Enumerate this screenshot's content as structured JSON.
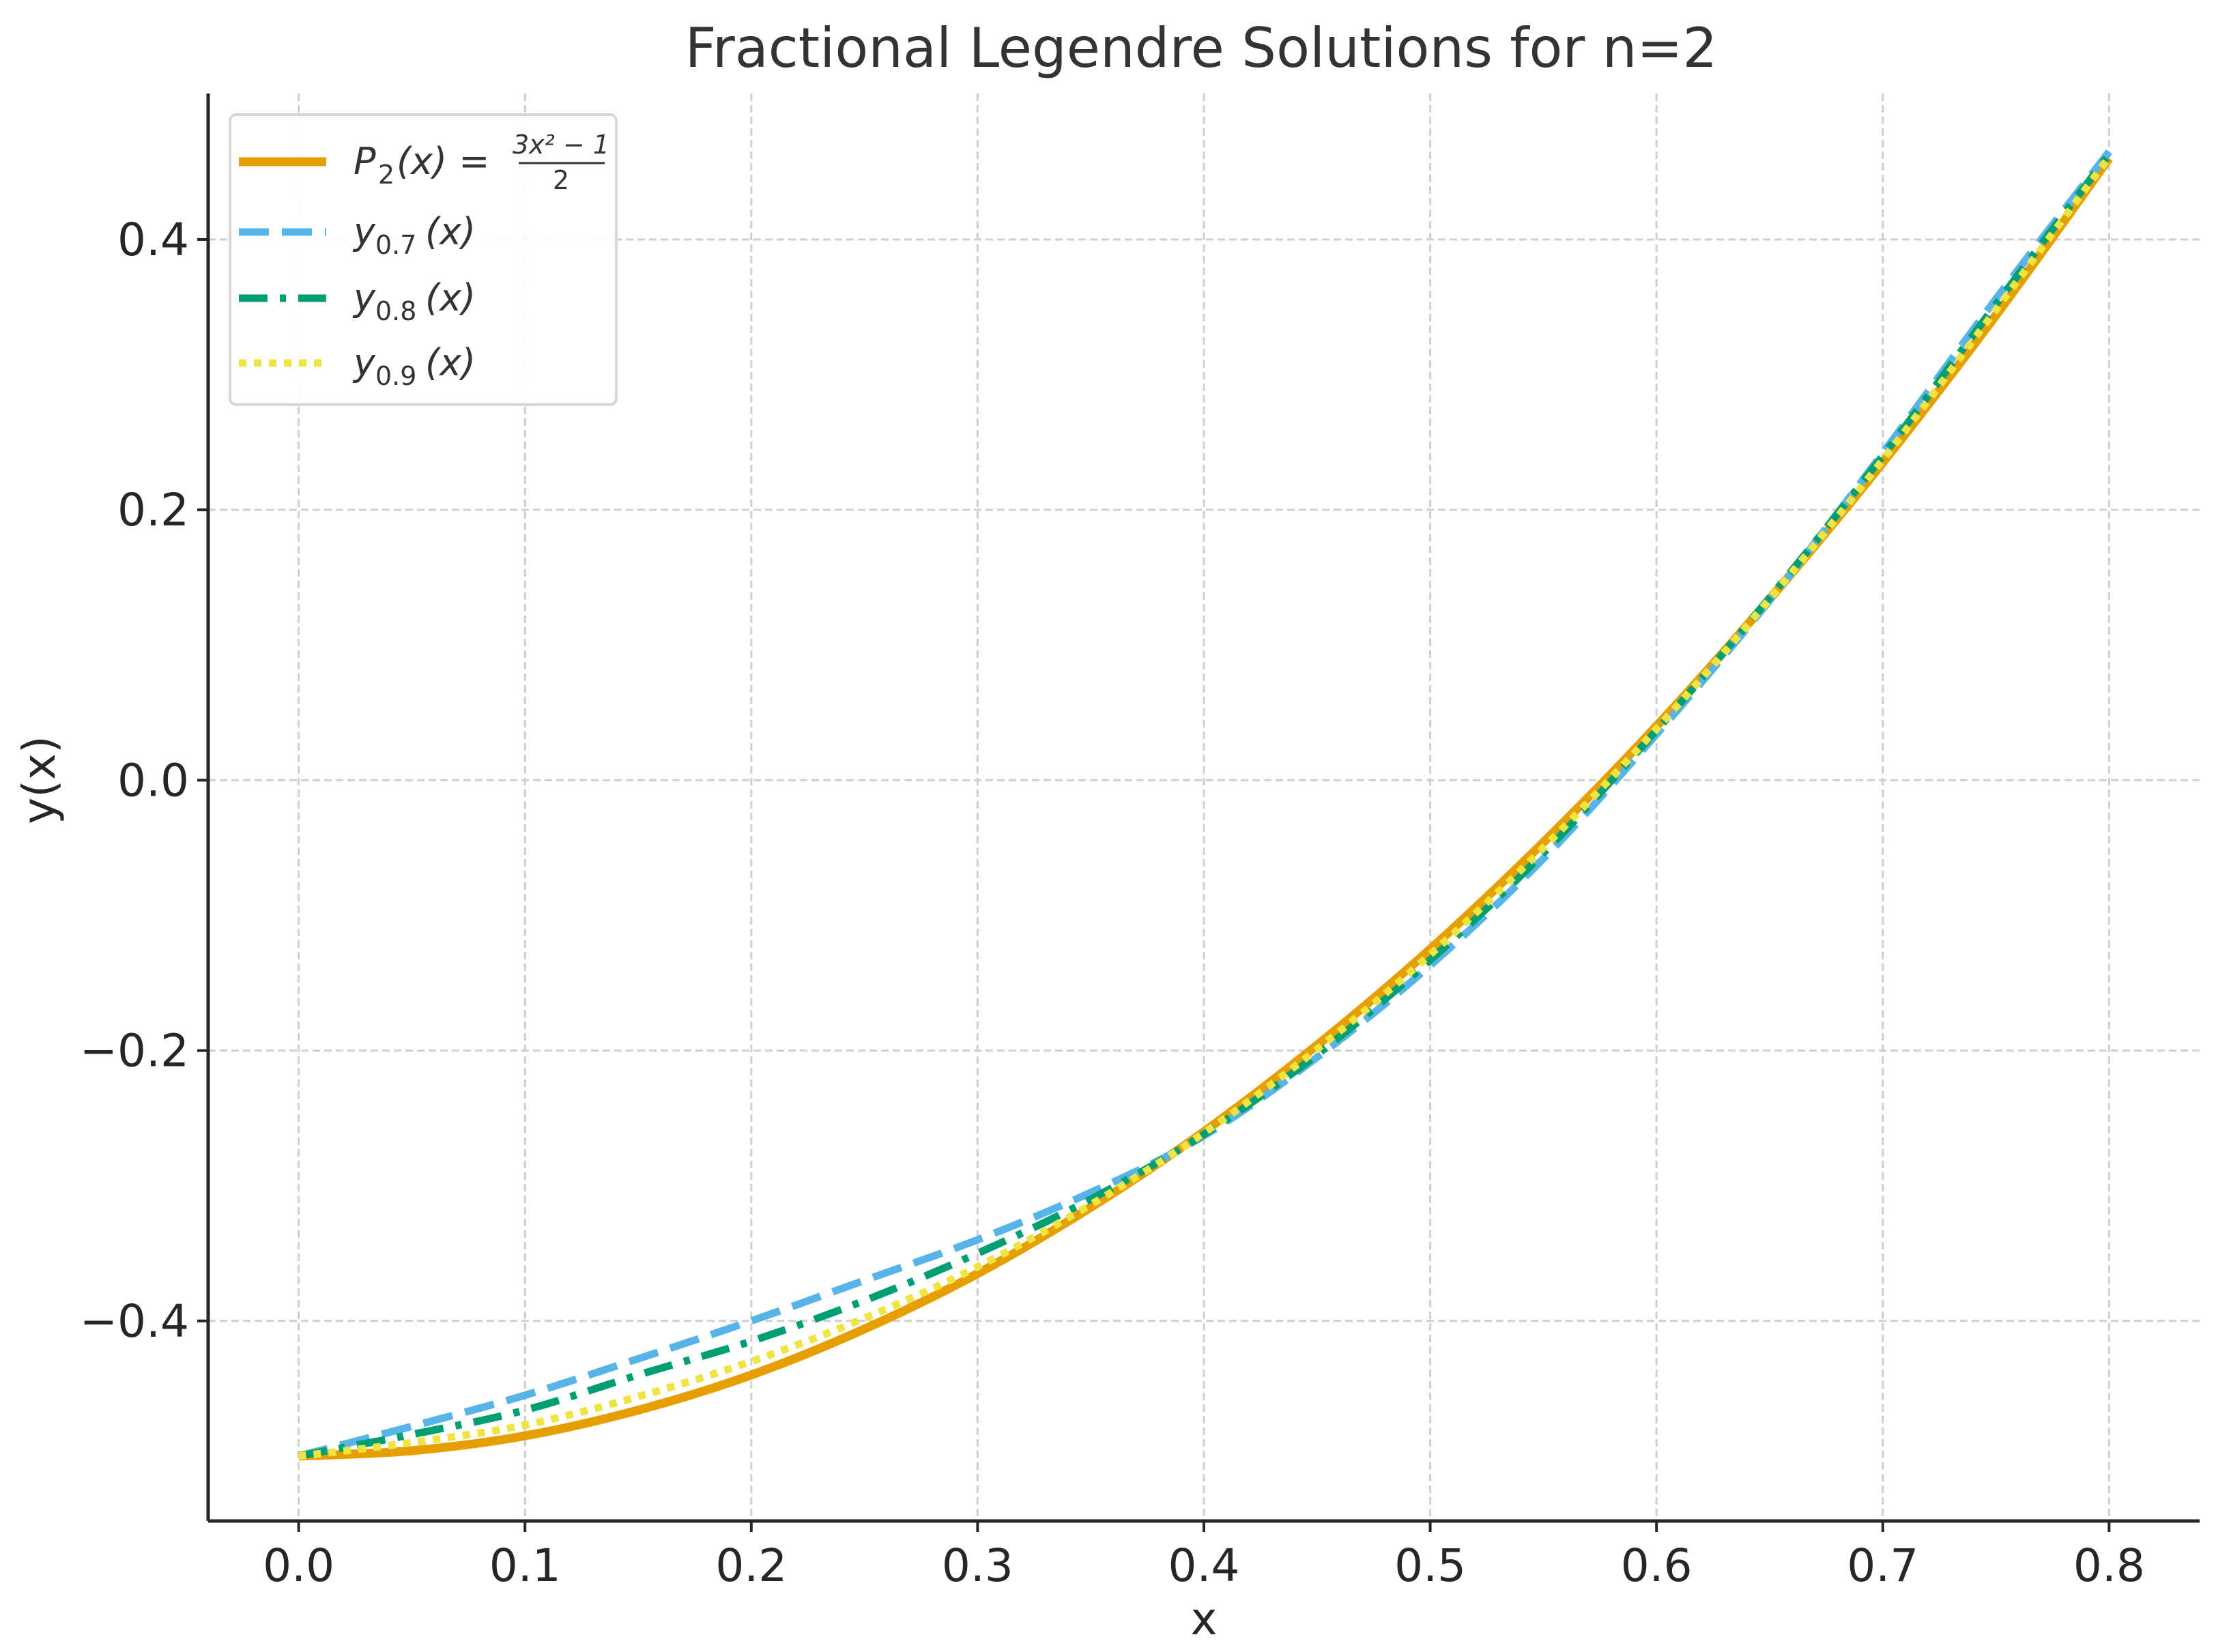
{
  "chart_data": {
    "type": "line",
    "title": "Fractional Legendre Solutions for n=2",
    "xlabel": "x",
    "ylabel": "y(x)",
    "xlim": [
      -0.04,
      0.84
    ],
    "ylim": [
      -0.548,
      0.508
    ],
    "x_ticks": [
      {
        "value": 0.0,
        "label": "0.0"
      },
      {
        "value": 0.1,
        "label": "0.1"
      },
      {
        "value": 0.2,
        "label": "0.2"
      },
      {
        "value": 0.3,
        "label": "0.3"
      },
      {
        "value": 0.4,
        "label": "0.4"
      },
      {
        "value": 0.5,
        "label": "0.5"
      },
      {
        "value": 0.6,
        "label": "0.6"
      },
      {
        "value": 0.7,
        "label": "0.7"
      },
      {
        "value": 0.8,
        "label": "0.8"
      }
    ],
    "y_ticks": [
      {
        "value": -0.4,
        "label": "−0.4"
      },
      {
        "value": -0.2,
        "label": "−0.2"
      },
      {
        "value": 0.0,
        "label": "0.0"
      },
      {
        "value": 0.2,
        "label": "0.2"
      },
      {
        "value": 0.4,
        "label": "0.4"
      }
    ],
    "grid": true,
    "legend_position": "top-left",
    "x": [
      0.0,
      0.05,
      0.1,
      0.15,
      0.2,
      0.25,
      0.3,
      0.35,
      0.4,
      0.45,
      0.5,
      0.55,
      0.6,
      0.65,
      0.7,
      0.75,
      0.8
    ],
    "series": [
      {
        "name": "P2(x) = (3x² − 1)/2",
        "legend_main": "P",
        "legend_sub": "2",
        "legend_rest": "(x) =",
        "legend_frac_num": "3x² − 1",
        "legend_frac_den": "2",
        "color": "#E69F00",
        "style": "solid",
        "values": [
          -0.5,
          -0.496,
          -0.485,
          -0.466,
          -0.44,
          -0.406,
          -0.365,
          -0.316,
          -0.26,
          -0.196,
          -0.125,
          -0.046,
          0.04,
          0.134,
          0.235,
          0.344,
          0.46
        ]
      },
      {
        "name": "y0.7(x)",
        "legend_main": "y",
        "legend_sub": "0.7",
        "legend_rest": "(x)",
        "color": "#56B4E9",
        "style": "dashed",
        "values": [
          -0.5,
          -0.478,
          -0.455,
          -0.428,
          -0.4,
          -0.37,
          -0.34,
          -0.305,
          -0.263,
          -0.205,
          -0.137,
          -0.058,
          0.034,
          0.133,
          0.242,
          0.356,
          0.465
        ]
      },
      {
        "name": "y0.8(x)",
        "legend_main": "y",
        "legend_sub": "0.8",
        "legend_rest": "(x)",
        "color": "#009E73",
        "style": "dashdot",
        "values": [
          -0.5,
          -0.484,
          -0.466,
          -0.44,
          -0.415,
          -0.385,
          -0.35,
          -0.31,
          -0.262,
          -0.203,
          -0.133,
          -0.054,
          0.037,
          0.135,
          0.24,
          0.352,
          0.463
        ]
      },
      {
        "name": "y0.9(x)",
        "legend_main": "y",
        "legend_sub": "0.9",
        "legend_rest": "(x)",
        "color": "#F0E442",
        "style": "dotted",
        "values": [
          -0.5,
          -0.49,
          -0.477,
          -0.456,
          -0.43,
          -0.398,
          -0.36,
          -0.314,
          -0.261,
          -0.199,
          -0.129,
          -0.05,
          0.038,
          0.134,
          0.237,
          0.348,
          0.461
        ]
      }
    ]
  }
}
